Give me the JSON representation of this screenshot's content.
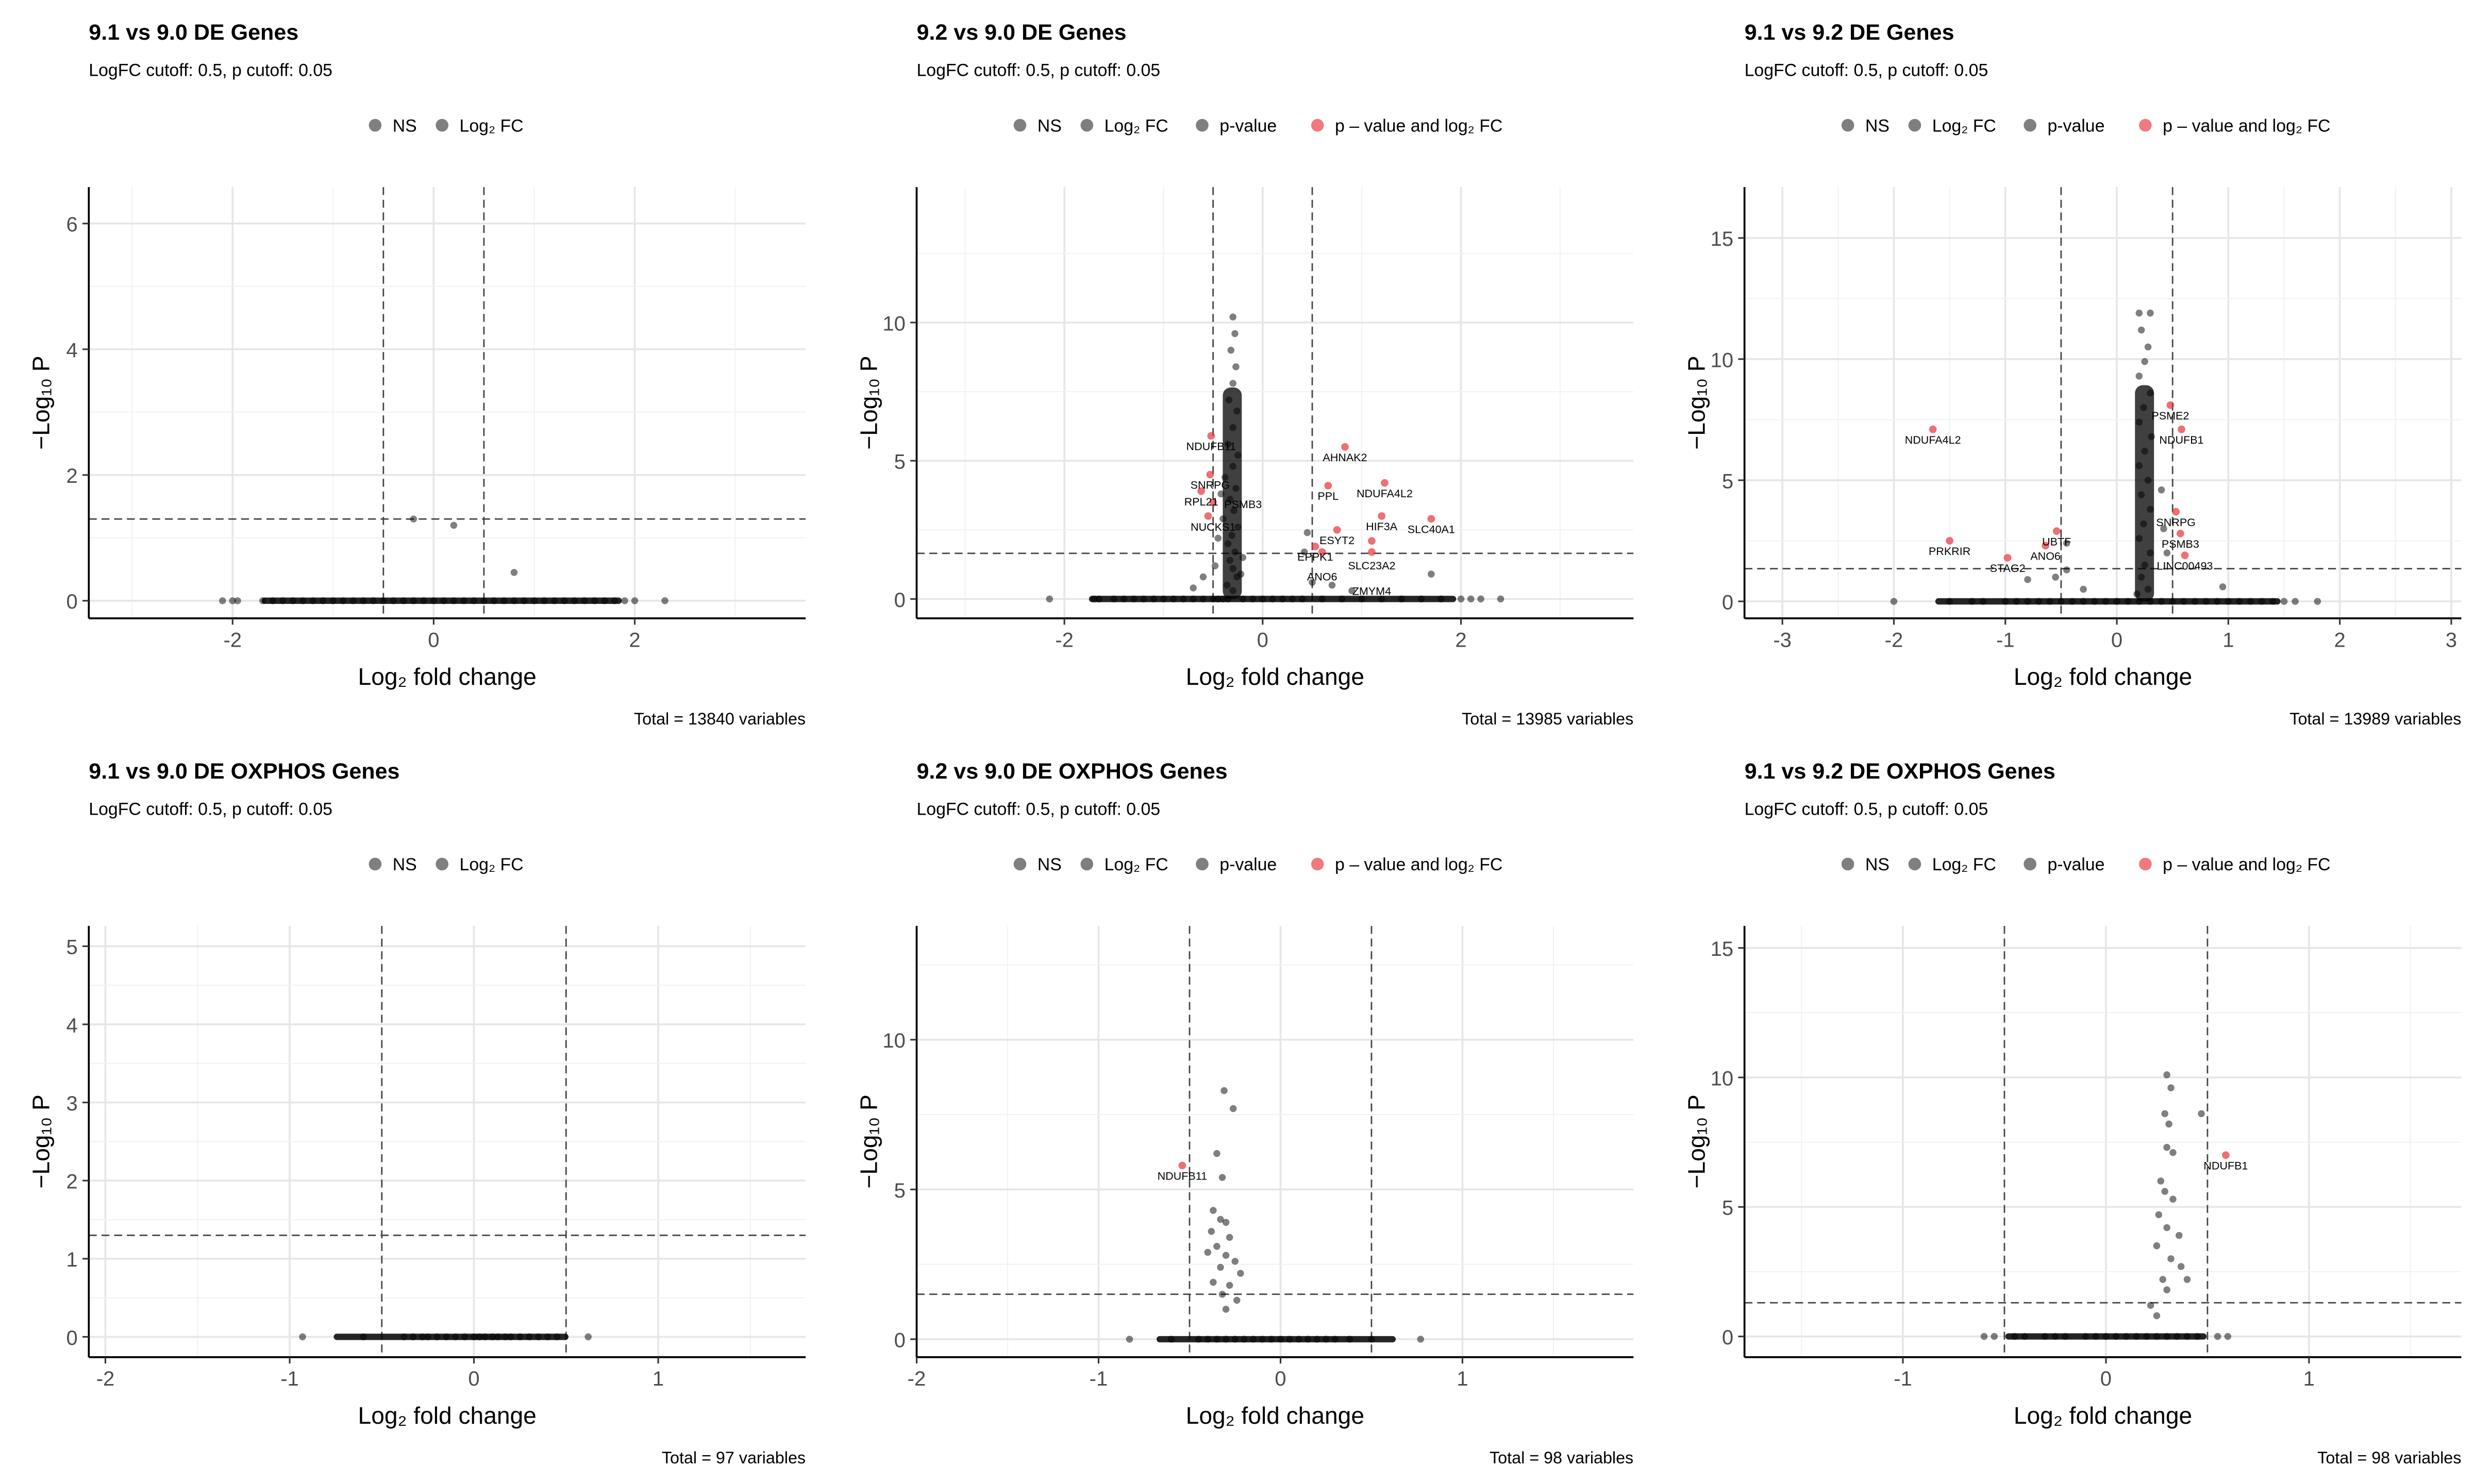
{
  "colors": {
    "ns": "#000000",
    "sig": "#e8323c",
    "grid_major": "#e6e6e6",
    "grid_minor": "#f2f2f2"
  },
  "chart_data": [
    {
      "type": "scatter",
      "title": "9.1 vs 9.0 DE Genes",
      "subtitle": "LogFC cutoff: 0.5, p cutoff: 0.05",
      "legend": [
        "NS",
        "Log₂ FC"
      ],
      "legend_placement": "top",
      "xlabel": "Log₂ fold change",
      "ylabel": "−Log₁₀ P",
      "xlim": [
        -3.43,
        3.7
      ],
      "ylim": [
        -0.28,
        6.58
      ],
      "xticks": [
        -2,
        0,
        2
      ],
      "yticks": [
        0,
        2,
        4,
        6
      ],
      "fc_cutoff": 0.5,
      "p_cutoff_log": 1.3,
      "caption": "Total = 13840 variables",
      "baseline_x": [
        -2.1,
        -2.0,
        -1.95,
        -1.7,
        -1.6,
        -1.5,
        -1.4,
        -1.3,
        -1.2,
        -1.1,
        -1.0,
        -0.9,
        -0.8,
        -0.7,
        -0.6,
        -0.5,
        -0.4,
        -0.3,
        -0.2,
        -0.1,
        0,
        0.1,
        0.2,
        0.3,
        0.4,
        0.5,
        0.6,
        0.7,
        0.8,
        0.9,
        1.0,
        1.1,
        1.2,
        1.3,
        1.4,
        1.5,
        1.6,
        1.7,
        1.8,
        1.9,
        2.0,
        2.3
      ],
      "points": [
        [
          -0.2,
          1.3
        ],
        [
          0.2,
          1.2
        ],
        [
          0.8,
          0.45
        ]
      ],
      "sig_points": []
    },
    {
      "type": "scatter",
      "title": "9.2 vs 9.0 DE Genes",
      "subtitle": "LogFC cutoff: 0.5, p cutoff: 0.05",
      "legend": [
        "NS",
        "Log₂ FC",
        "p-value",
        "p – value and log₂ FC"
      ],
      "legend_placement": "top",
      "xlabel": "Log₂ fold change",
      "ylabel": "−Log₁₀ P",
      "xlim": [
        -3.49,
        3.74
      ],
      "ylim": [
        -0.7,
        14.9
      ],
      "xticks": [
        -2,
        0,
        2
      ],
      "yticks": [
        0,
        5,
        10
      ],
      "fc_cutoff": 0.5,
      "p_cutoff_log": 1.65,
      "caption": "Total = 13985 variables",
      "baseline_x": [
        -2.15,
        -1.7,
        -1.65,
        -1.5,
        -1.4,
        -1.3,
        -1.2,
        -1.1,
        -1.0,
        -0.9,
        -0.8,
        -0.7,
        -0.6,
        -0.5,
        -0.45,
        -0.4,
        -0.35,
        -0.2,
        -0.1,
        0,
        0.1,
        0.2,
        0.3,
        0.4,
        0.6,
        0.8,
        1.0,
        1.2,
        1.4,
        1.6,
        1.8,
        2.0,
        2.1,
        2.2,
        2.4
      ],
      "points": [
        [
          -0.3,
          10.2
        ],
        [
          -0.28,
          9.6
        ],
        [
          -0.32,
          9.0
        ],
        [
          -0.27,
          8.4
        ],
        [
          -0.3,
          7.8
        ],
        [
          -0.34,
          7.2
        ],
        [
          -0.26,
          6.8
        ],
        [
          -0.3,
          6.2
        ],
        [
          -0.35,
          5.6
        ],
        [
          -0.25,
          5.2
        ],
        [
          -0.3,
          4.8
        ],
        [
          -0.38,
          4.4
        ],
        [
          -0.27,
          4.0
        ],
        [
          -0.33,
          3.6
        ],
        [
          -0.29,
          3.2
        ],
        [
          -0.4,
          2.9
        ],
        [
          -0.25,
          2.6
        ],
        [
          -0.31,
          2.3
        ],
        [
          -0.35,
          2.0
        ],
        [
          -0.28,
          1.7
        ],
        [
          -0.33,
          1.4
        ],
        [
          -0.3,
          1.1
        ],
        [
          -0.26,
          0.8
        ],
        [
          -0.36,
          0.5
        ],
        [
          -0.3,
          0.3
        ],
        [
          -0.42,
          3.8
        ],
        [
          -0.45,
          2.2
        ],
        [
          -0.48,
          1.2
        ],
        [
          -0.2,
          1.5
        ],
        [
          -0.22,
          0.9
        ],
        [
          0.45,
          2.4
        ],
        [
          0.42,
          1.7
        ],
        [
          0.5,
          0.6
        ],
        [
          0.7,
          0.5
        ],
        [
          1.7,
          0.9
        ],
        [
          -0.6,
          0.8
        ],
        [
          -0.7,
          0.4
        ],
        [
          0.9,
          0.3
        ]
      ],
      "sig_points": [
        {
          "x": -0.52,
          "y": 5.9,
          "label": "NDUFB11"
        },
        {
          "x": -0.53,
          "y": 4.5,
          "label": "SNRPG"
        },
        {
          "x": -0.62,
          "y": 3.9,
          "label": "RPL21"
        },
        {
          "x": -0.5,
          "y": 3.5,
          "label": "NUCKS1"
        },
        {
          "x": -0.55,
          "y": 3.0,
          "label": "PSMB3"
        },
        {
          "x": 0.83,
          "y": 5.5,
          "label": "AHNAK2"
        },
        {
          "x": 0.66,
          "y": 4.1,
          "label": "PPL"
        },
        {
          "x": 1.23,
          "y": 4.2,
          "label": "NDUFA4L2"
        },
        {
          "x": 1.2,
          "y": 3.0,
          "label": "HIF3A"
        },
        {
          "x": 1.7,
          "y": 2.9,
          "label": "SLC40A1"
        },
        {
          "x": 0.75,
          "y": 2.5,
          "label": "ESYT2"
        },
        {
          "x": 1.1,
          "y": 2.1,
          "label": "SLC23A2"
        },
        {
          "x": 1.1,
          "y": 1.7,
          "label": "ZMYM4"
        },
        {
          "x": 0.53,
          "y": 1.9,
          "label": "EPPK1"
        },
        {
          "x": 0.6,
          "y": 1.7,
          "label": "ANO6"
        }
      ]
    },
    {
      "type": "scatter",
      "title": "9.1 vs 9.2 DE Genes",
      "subtitle": "LogFC cutoff: 0.5, p cutoff: 0.05",
      "legend": [
        "NS",
        "Log₂ FC",
        "p-value",
        "p – value and log₂ FC"
      ],
      "legend_placement": "top",
      "xlabel": "Log₂ fold change",
      "ylabel": "−Log₁₀ P",
      "xlim": [
        -3.34,
        3.09
      ],
      "ylim": [
        -0.7,
        17.1
      ],
      "xticks": [
        -3,
        -2,
        -1,
        0,
        1,
        2,
        3
      ],
      "yticks": [
        0,
        5,
        10,
        15
      ],
      "fc_cutoff": 0.5,
      "p_cutoff_log": 1.35,
      "caption": "Total = 13989 variables",
      "baseline_x": [
        -2.0,
        -1.5,
        -1.3,
        -1.2,
        -1.0,
        -0.9,
        -0.8,
        -0.7,
        -0.6,
        -0.5,
        -0.4,
        -0.3,
        -0.2,
        -0.1,
        0,
        0.1,
        0.2,
        0.3,
        0.4,
        0.5,
        0.6,
        0.7,
        0.8,
        0.9,
        1.0,
        1.1,
        1.2,
        1.3,
        1.4,
        1.5,
        1.6,
        1.8
      ],
      "points": [
        [
          0.2,
          11.9
        ],
        [
          0.3,
          11.9
        ],
        [
          0.22,
          11.2
        ],
        [
          0.28,
          10.5
        ],
        [
          0.25,
          9.9
        ],
        [
          0.2,
          9.3
        ],
        [
          0.3,
          8.6
        ],
        [
          0.24,
          8.0
        ],
        [
          0.2,
          7.4
        ],
        [
          0.31,
          6.8
        ],
        [
          0.25,
          6.2
        ],
        [
          0.2,
          5.6
        ],
        [
          0.28,
          5.0
        ],
        [
          0.22,
          4.4
        ],
        [
          0.3,
          3.8
        ],
        [
          0.24,
          3.2
        ],
        [
          0.2,
          2.6
        ],
        [
          0.3,
          2.0
        ],
        [
          0.25,
          1.5
        ],
        [
          0.22,
          1.0
        ],
        [
          0.28,
          0.5
        ],
        [
          0.18,
          0.3
        ],
        [
          0.4,
          4.6
        ],
        [
          0.42,
          3.0
        ],
        [
          0.45,
          2.0
        ],
        [
          -0.45,
          2.4
        ],
        [
          -0.55,
          1.0
        ],
        [
          -0.45,
          1.3
        ],
        [
          -0.8,
          0.9
        ],
        [
          0.95,
          0.6
        ],
        [
          -0.3,
          0.5
        ]
      ],
      "sig_points": [
        {
          "x": -1.65,
          "y": 7.1,
          "label": "NDUFA4L2"
        },
        {
          "x": 0.48,
          "y": 8.1,
          "label": "PSME2"
        },
        {
          "x": 0.58,
          "y": 7.1,
          "label": "NDUFB1"
        },
        {
          "x": 0.53,
          "y": 3.7,
          "label": "SNRPG"
        },
        {
          "x": 0.57,
          "y": 2.8,
          "label": "PSMB3"
        },
        {
          "x": 0.61,
          "y": 1.9,
          "label": "LINC00493"
        },
        {
          "x": -1.5,
          "y": 2.5,
          "label": "PRKRIR"
        },
        {
          "x": -0.54,
          "y": 2.9,
          "label": "UBTF"
        },
        {
          "x": -0.64,
          "y": 2.3,
          "label": "ANO6"
        },
        {
          "x": -0.98,
          "y": 1.8,
          "label": "STAG2"
        }
      ]
    },
    {
      "type": "scatter",
      "title": "9.1 vs 9.0 DE OXPHOS Genes",
      "subtitle": "LogFC cutoff: 0.5, p cutoff: 0.05",
      "legend": [
        "NS",
        "Log₂ FC"
      ],
      "legend_placement": "top",
      "xlabel": "Log₂ fold change",
      "ylabel": "−Log₁₀ P",
      "xlim": [
        -2.09,
        1.8
      ],
      "ylim": [
        -0.26,
        5.26
      ],
      "xticks": [
        -2,
        -1,
        0,
        1
      ],
      "yticks": [
        0,
        1,
        2,
        3,
        4,
        5
      ],
      "fc_cutoff": 0.5,
      "p_cutoff_log": 1.3,
      "caption": "Total = 97 variables",
      "baseline_x": [
        -0.93,
        -0.6,
        -0.38,
        -0.33,
        -0.28,
        -0.25,
        -0.2,
        -0.15,
        -0.1,
        -0.05,
        0,
        0.03,
        0.06,
        0.1,
        0.13,
        0.17,
        0.2,
        0.25,
        0.3,
        0.35,
        0.4,
        0.45,
        0.62
      ],
      "points": [],
      "sig_points": []
    },
    {
      "type": "scatter",
      "title": "9.2 vs 9.0 DE OXPHOS Genes",
      "subtitle": "LogFC cutoff: 0.5, p cutoff: 0.05",
      "legend": [
        "NS",
        "Log₂ FC",
        "p-value",
        "p – value and log₂ FC"
      ],
      "legend_placement": "top",
      "xlabel": "Log₂ fold change",
      "ylabel": "−Log₁₀ P",
      "xlim": [
        -2.0,
        1.94
      ],
      "ylim": [
        -0.6,
        13.8
      ],
      "xticks": [
        -2,
        -1,
        0,
        1
      ],
      "yticks": [
        0,
        5,
        10
      ],
      "fc_cutoff": 0.5,
      "p_cutoff_log": 1.5,
      "caption": "Total = 98 variables",
      "baseline_x": [
        -0.83,
        -0.6,
        -0.45,
        -0.4,
        -0.35,
        -0.3,
        -0.25,
        -0.2,
        -0.15,
        -0.1,
        -0.05,
        0,
        0.05,
        0.1,
        0.15,
        0.2,
        0.25,
        0.3,
        0.38,
        0.5,
        0.77
      ],
      "points": [
        [
          -0.31,
          8.3
        ],
        [
          -0.26,
          7.7
        ],
        [
          -0.35,
          6.2
        ],
        [
          -0.32,
          5.4
        ],
        [
          -0.37,
          4.3
        ],
        [
          -0.33,
          4.0
        ],
        [
          -0.3,
          3.9
        ],
        [
          -0.38,
          3.6
        ],
        [
          -0.28,
          3.4
        ],
        [
          -0.35,
          3.1
        ],
        [
          -0.4,
          2.9
        ],
        [
          -0.3,
          2.8
        ],
        [
          -0.25,
          2.6
        ],
        [
          -0.33,
          2.4
        ],
        [
          -0.22,
          2.2
        ],
        [
          -0.37,
          1.9
        ],
        [
          -0.28,
          1.8
        ],
        [
          -0.32,
          1.5
        ],
        [
          -0.24,
          1.3
        ],
        [
          -0.3,
          1.0
        ]
      ],
      "sig_points": [
        {
          "x": -0.54,
          "y": 5.8,
          "label": "NDUFB11"
        }
      ]
    },
    {
      "type": "scatter",
      "title": "9.1 vs 9.2 DE OXPHOS Genes",
      "subtitle": "LogFC cutoff: 0.5, p cutoff: 0.05",
      "legend": [
        "NS",
        "Log₂ FC",
        "p-value",
        "p – value and log₂ FC"
      ],
      "legend_placement": "top",
      "xlabel": "Log₂ fold change",
      "ylabel": "−Log₁₀ P",
      "xlim": [
        -1.78,
        1.75
      ],
      "ylim": [
        -0.8,
        15.85
      ],
      "xticks": [
        -1,
        0,
        1
      ],
      "yticks": [
        0,
        5,
        10,
        15
      ],
      "fc_cutoff": 0.5,
      "p_cutoff_log": 1.3,
      "caption": "Total = 98 variables",
      "baseline_x": [
        -0.6,
        -0.55,
        -0.45,
        -0.4,
        -0.3,
        -0.25,
        -0.2,
        -0.1,
        -0.05,
        0,
        0.05,
        0.1,
        0.15,
        0.2,
        0.25,
        0.3,
        0.35,
        0.4,
        0.45,
        0.55,
        0.6
      ],
      "points": [
        [
          0.3,
          10.1
        ],
        [
          0.32,
          9.6
        ],
        [
          0.29,
          8.6
        ],
        [
          0.31,
          8.2
        ],
        [
          0.47,
          8.6
        ],
        [
          0.3,
          7.3
        ],
        [
          0.33,
          7.1
        ],
        [
          0.27,
          6.0
        ],
        [
          0.29,
          5.6
        ],
        [
          0.33,
          5.3
        ],
        [
          0.26,
          4.7
        ],
        [
          0.3,
          4.2
        ],
        [
          0.36,
          3.9
        ],
        [
          0.25,
          3.5
        ],
        [
          0.32,
          3.0
        ],
        [
          0.37,
          2.7
        ],
        [
          0.28,
          2.2
        ],
        [
          0.3,
          1.8
        ],
        [
          0.4,
          2.2
        ],
        [
          0.22,
          1.2
        ],
        [
          0.25,
          0.8
        ]
      ],
      "sig_points": [
        {
          "x": 0.59,
          "y": 7.0,
          "label": "NDUFB1"
        }
      ]
    }
  ]
}
